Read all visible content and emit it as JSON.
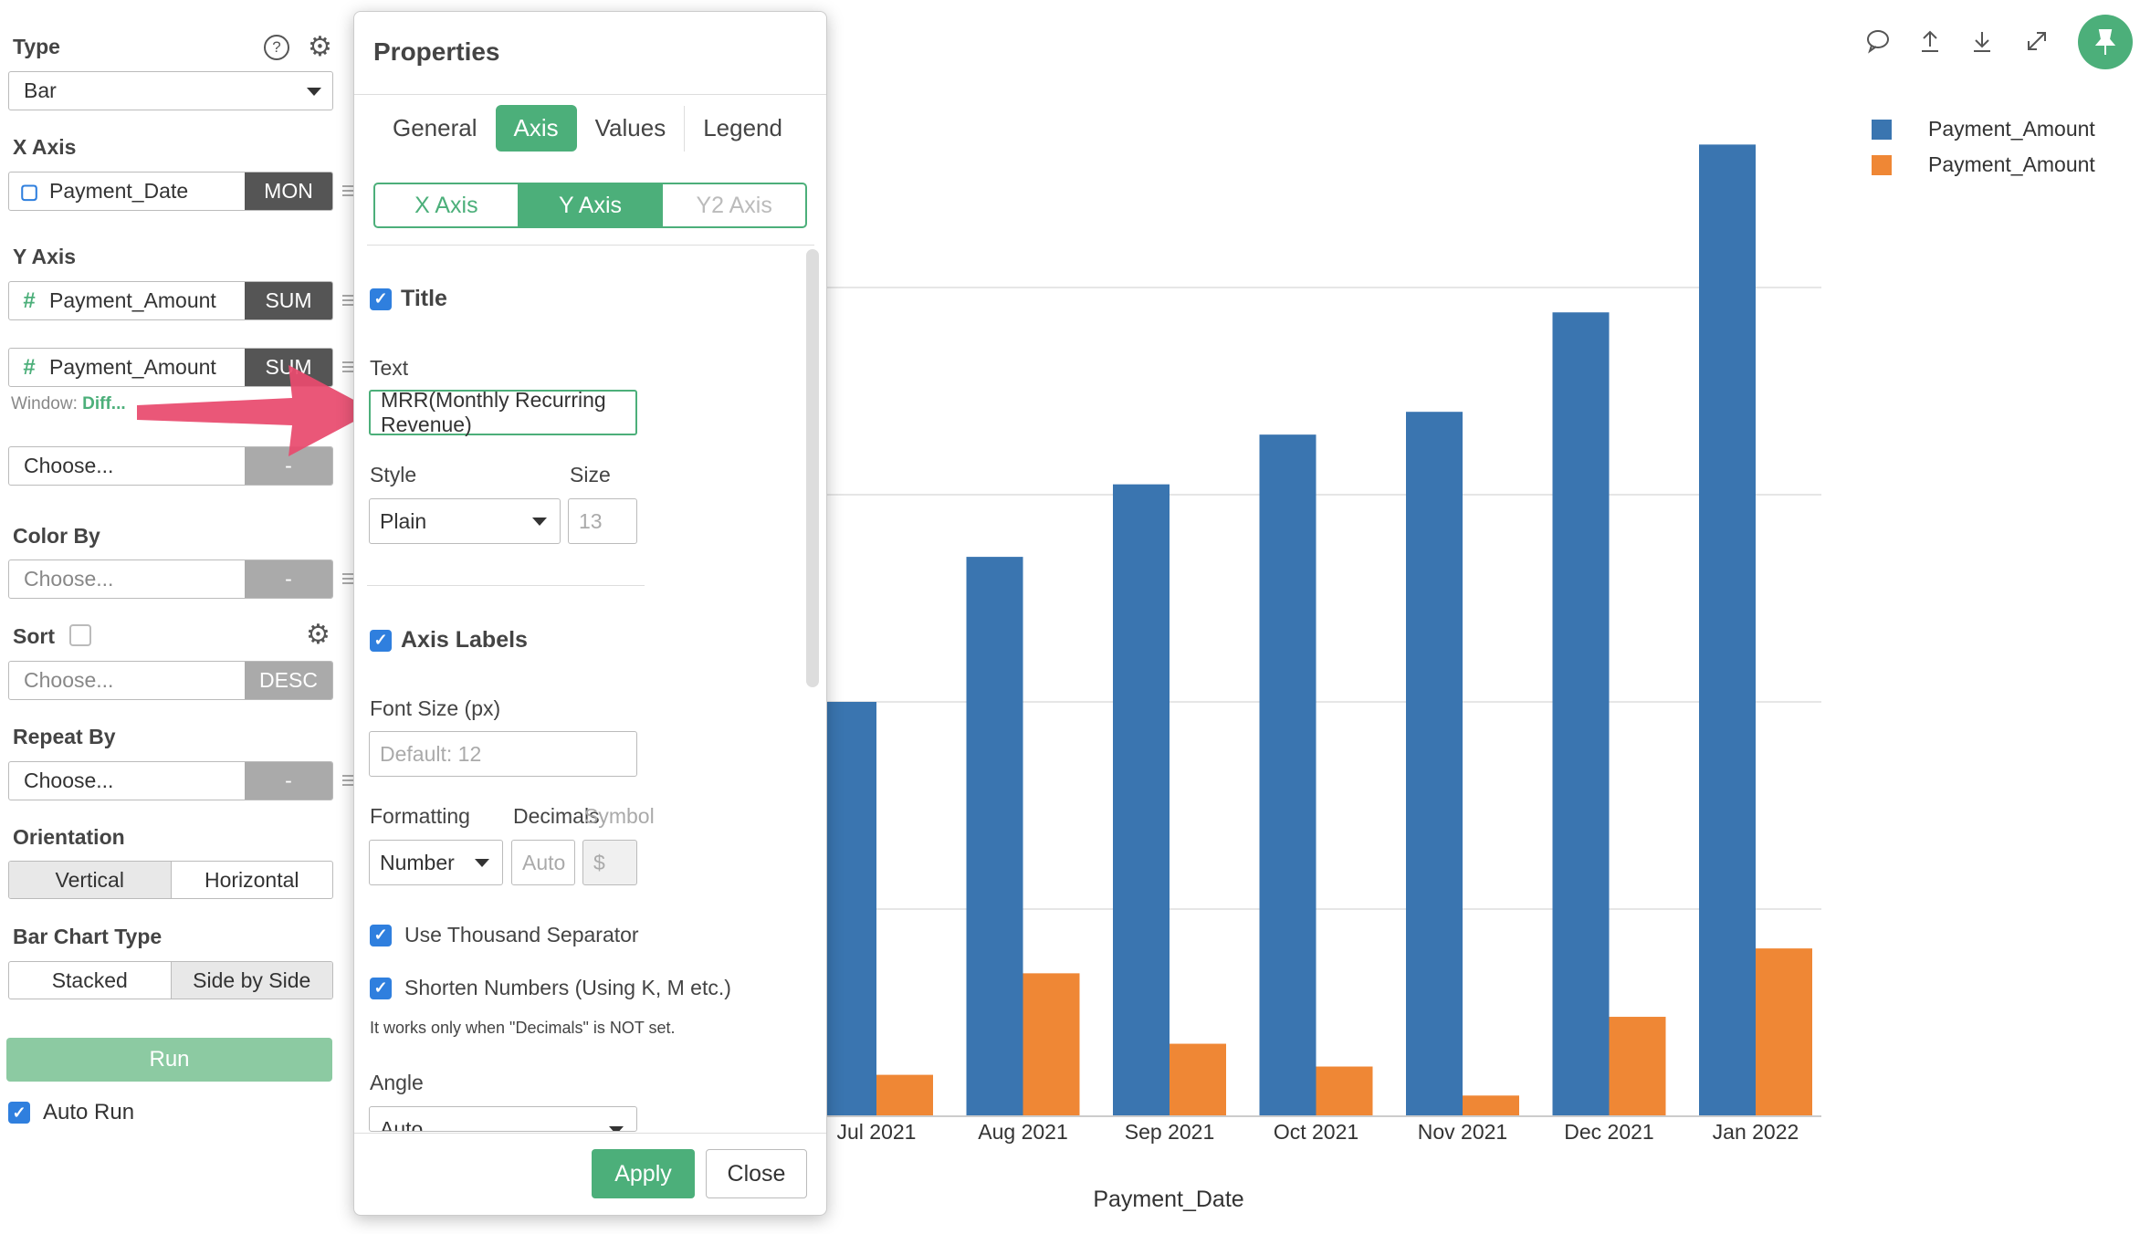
{
  "left_panel": {
    "type": {
      "label": "Type",
      "value": "Bar"
    },
    "x_axis": {
      "label": "X Axis",
      "field": "Payment_Date",
      "agg": "MON"
    },
    "y_axis": {
      "label": "Y Axis",
      "field1": "Payment_Amount",
      "agg1": "SUM",
      "field2": "Payment_Amount",
      "agg2": "SUM",
      "window_label": "Window:",
      "window_value": "Diff...",
      "choose": "Choose...",
      "choose_btn": "-"
    },
    "color_by": {
      "label": "Color By",
      "placeholder": "Choose...",
      "btn": "-"
    },
    "sort": {
      "label": "Sort",
      "placeholder": "Choose...",
      "btn": "DESC"
    },
    "repeat_by": {
      "label": "Repeat By",
      "value": "Choose...",
      "btn": "-"
    },
    "orientation": {
      "label": "Orientation",
      "options": [
        "Vertical",
        "Horizontal"
      ]
    },
    "bar_chart_type": {
      "label": "Bar Chart Type",
      "options": [
        "Stacked",
        "Side by Side"
      ]
    },
    "run": "Run",
    "auto_run": "Auto Run"
  },
  "modal": {
    "title": "Properties",
    "tabs": [
      "General",
      "Axis",
      "Values",
      "Legend"
    ],
    "axis_tabs": [
      "X Axis",
      "Y Axis",
      "Y2 Axis"
    ],
    "title_section": {
      "checkbox_label": "Title",
      "text_label": "Text",
      "text_value": "MRR(Monthly Recurring Revenue)",
      "style_label": "Style",
      "style_value": "Plain",
      "size_label": "Size",
      "size_placeholder": "13"
    },
    "axis_labels_section": {
      "checkbox_label": "Axis Labels",
      "font_size_label": "Font Size (px)",
      "font_size_placeholder": "Default: 12",
      "formatting_label": "Formatting",
      "formatting_value": "Number",
      "decimals_label": "Decimals",
      "decimals_placeholder": "Auto",
      "symbol_label": "Symbol",
      "symbol_placeholder": "$",
      "thousand_sep": "Use Thousand Separator",
      "shorten": "Shorten Numbers (Using K, M etc.)",
      "note": "It works only when \"Decimals\" is NOT set.",
      "angle_label": "Angle",
      "angle_value": "Auto"
    },
    "apply": "Apply",
    "close": "Close"
  },
  "chart_data": {
    "type": "bar",
    "categories": [
      "Jul 2021",
      "Aug 2021",
      "Sep 2021",
      "Oct 2021",
      "Nov 2021",
      "Dec 2021",
      "Jan 2022"
    ],
    "series": [
      {
        "name": "Payment_Amount",
        "color": "#3a75b0",
        "values": [
          2000,
          2700,
          3050,
          3290,
          3400,
          3880,
          4690
        ]
      },
      {
        "name": "Payment_Amount",
        "color": "#ef8735",
        "values": [
          200,
          690,
          350,
          240,
          100,
          480,
          810
        ]
      }
    ],
    "xlabel": "Payment_Date",
    "ylim": [
      0,
      5000
    ],
    "grid": true,
    "legend": "top-right"
  },
  "colors": {
    "accent": "#4caf7a",
    "arrow": "#e84a6e"
  }
}
